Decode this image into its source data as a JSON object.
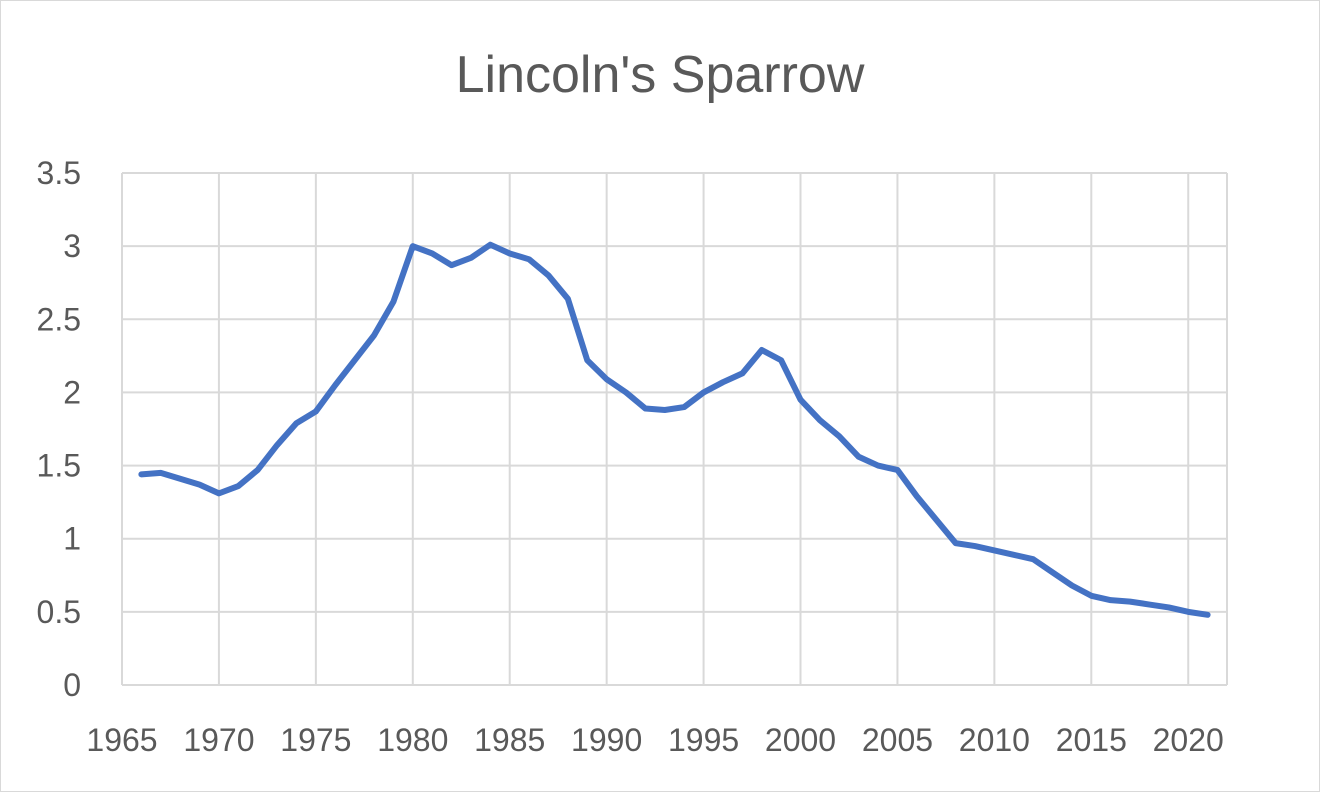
{
  "chart_data": {
    "type": "line",
    "title": "Lincoln's Sparrow",
    "xlabel": "",
    "ylabel": "",
    "xlim": [
      1965,
      2022
    ],
    "ylim": [
      0,
      3.5
    ],
    "x_ticks": [
      1965,
      1970,
      1975,
      1980,
      1985,
      1990,
      1995,
      2000,
      2005,
      2010,
      2015,
      2020
    ],
    "y_ticks": [
      0,
      0.5,
      1,
      1.5,
      2,
      2.5,
      3,
      3.5
    ],
    "y_tick_labels": [
      "0",
      "0.5",
      "1",
      "1.5",
      "2",
      "2.5",
      "3",
      "3.5"
    ],
    "grid": true,
    "legend": "none",
    "series": [
      {
        "color": "#4472c4",
        "x": [
          1966,
          1967,
          1968,
          1969,
          1970,
          1971,
          1972,
          1973,
          1974,
          1975,
          1976,
          1977,
          1978,
          1979,
          1980,
          1981,
          1982,
          1983,
          1984,
          1985,
          1986,
          1987,
          1988,
          1989,
          1990,
          1991,
          1992,
          1993,
          1994,
          1995,
          1996,
          1997,
          1998,
          1999,
          2000,
          2001,
          2002,
          2003,
          2004,
          2005,
          2006,
          2007,
          2008,
          2009,
          2010,
          2011,
          2012,
          2013,
          2014,
          2015,
          2016,
          2017,
          2018,
          2019,
          2020,
          2021
        ],
        "values": [
          1.44,
          1.45,
          1.41,
          1.37,
          1.31,
          1.36,
          1.47,
          1.64,
          1.79,
          1.87,
          2.05,
          2.22,
          2.39,
          2.62,
          3.0,
          2.95,
          2.87,
          2.92,
          3.01,
          2.95,
          2.91,
          2.8,
          2.64,
          2.22,
          2.09,
          2.0,
          1.89,
          1.88,
          1.9,
          2.0,
          2.07,
          2.13,
          2.29,
          2.22,
          1.95,
          1.81,
          1.7,
          1.56,
          1.5,
          1.47,
          1.29,
          1.13,
          0.97,
          0.95,
          0.92,
          0.89,
          0.86,
          0.77,
          0.68,
          0.61,
          0.58,
          0.57,
          0.55,
          0.53,
          0.5,
          0.48
        ]
      }
    ]
  }
}
